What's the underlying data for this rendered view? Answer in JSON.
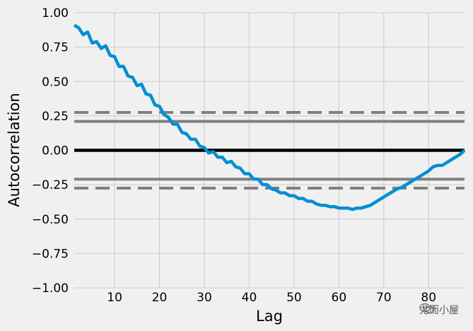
{
  "chart_data": {
    "type": "line",
    "title": "",
    "xlabel": "Lag",
    "ylabel": "Autocorrelation",
    "xlim": [
      1,
      88
    ],
    "ylim": [
      -1.0,
      1.0
    ],
    "xticks": [
      10,
      20,
      30,
      40,
      50,
      60,
      70,
      80
    ],
    "yticks": [
      -1.0,
      -0.75,
      -0.5,
      -0.25,
      0.0,
      0.25,
      0.5,
      0.75,
      1.0
    ],
    "ytick_labels": [
      "−1.00",
      "−0.75",
      "−0.50",
      "−0.25",
      "0.00",
      "0.25",
      "0.50",
      "0.75",
      "1.00"
    ],
    "grid": true,
    "reference_lines": {
      "zero": 0.0,
      "confidence_95": [
        0.21,
        -0.21
      ],
      "confidence_99": [
        0.275,
        -0.275
      ]
    },
    "series": [
      {
        "color": "#008fd5",
        "x": [
          1,
          2,
          3,
          4,
          5,
          6,
          7,
          8,
          9,
          10,
          11,
          12,
          13,
          14,
          15,
          16,
          17,
          18,
          19,
          20,
          21,
          22,
          23,
          24,
          25,
          26,
          27,
          28,
          29,
          30,
          31,
          32,
          33,
          34,
          35,
          36,
          37,
          38,
          39,
          40,
          41,
          42,
          43,
          44,
          45,
          46,
          47,
          48,
          49,
          50,
          51,
          52,
          53,
          54,
          55,
          56,
          57,
          58,
          59,
          60,
          61,
          62,
          63,
          64,
          65,
          66,
          67,
          68,
          69,
          70,
          71,
          72,
          73,
          74,
          75,
          76,
          77,
          78,
          79,
          80,
          81,
          82,
          83,
          84,
          85,
          86,
          87,
          88
        ],
        "values": [
          0.91,
          0.89,
          0.84,
          0.86,
          0.78,
          0.79,
          0.74,
          0.76,
          0.69,
          0.68,
          0.61,
          0.61,
          0.54,
          0.53,
          0.47,
          0.48,
          0.41,
          0.4,
          0.33,
          0.32,
          0.26,
          0.24,
          0.19,
          0.19,
          0.13,
          0.12,
          0.08,
          0.08,
          0.03,
          0.02,
          -0.02,
          -0.01,
          -0.05,
          -0.05,
          -0.09,
          -0.08,
          -0.12,
          -0.13,
          -0.17,
          -0.17,
          -0.21,
          -0.21,
          -0.25,
          -0.25,
          -0.28,
          -0.29,
          -0.31,
          -0.31,
          -0.33,
          -0.33,
          -0.35,
          -0.35,
          -0.37,
          -0.37,
          -0.39,
          -0.4,
          -0.4,
          -0.41,
          -0.41,
          -0.42,
          -0.42,
          -0.42,
          -0.43,
          -0.42,
          -0.42,
          -0.41,
          -0.4,
          -0.38,
          -0.36,
          -0.34,
          -0.32,
          -0.3,
          -0.28,
          -0.27,
          -0.25,
          -0.23,
          -0.21,
          -0.19,
          -0.17,
          -0.15,
          -0.12,
          -0.11,
          -0.11,
          -0.09,
          -0.07,
          -0.05,
          -0.03,
          0.0
        ]
      }
    ],
    "colors": {
      "background": "#f0f0f0",
      "grid": "#cbcbcb",
      "zero_line": "#000000",
      "confidence_lines": "#808080"
    }
  },
  "watermark": {
    "icon": "wechat-icon",
    "text": "尤而小屋"
  }
}
